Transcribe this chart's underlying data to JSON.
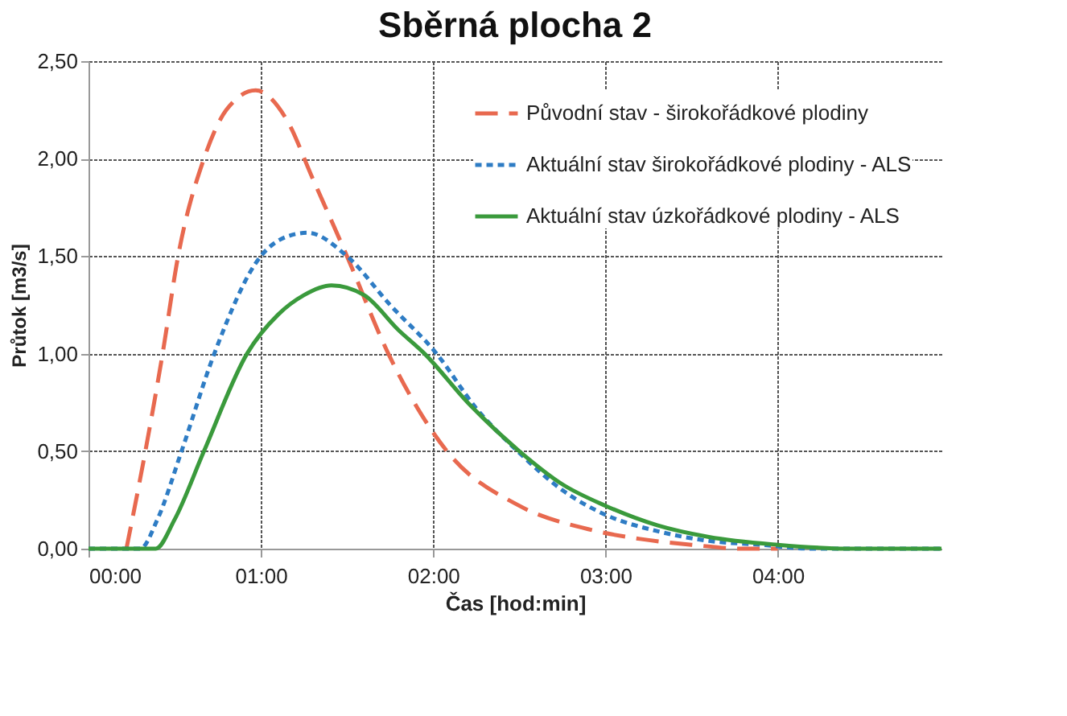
{
  "chart_data": {
    "type": "line",
    "title": "Sběrná plocha 2",
    "xlabel": "Čas [hod:min]",
    "ylabel": "Průtok [m3/s]",
    "xlim": [
      0,
      4.95
    ],
    "xticks": [
      {
        "value": 0,
        "label": "00:00"
      },
      {
        "value": 1,
        "label": "01:00"
      },
      {
        "value": 2,
        "label": "02:00"
      },
      {
        "value": 3,
        "label": "03:00"
      },
      {
        "value": 4,
        "label": "04:00"
      }
    ],
    "ylim": [
      0,
      2.5
    ],
    "yticks": [
      {
        "value": 0,
        "label": "0,00"
      },
      {
        "value": 0.5,
        "label": "0,50"
      },
      {
        "value": 1,
        "label": "1,00"
      },
      {
        "value": 1.5,
        "label": "1,50"
      },
      {
        "value": 2,
        "label": "2,00"
      },
      {
        "value": 2.5,
        "label": "2,50"
      }
    ],
    "grid": true,
    "legend": "top right",
    "marker": "none",
    "series": [
      {
        "name": "Původní stav - širokořádkové plodiny",
        "color": "#e8694f",
        "line_style": "dashed",
        "x": [
          0.22,
          0.33,
          0.43,
          0.52,
          0.67,
          0.8,
          0.97,
          1.15,
          1.3,
          1.5,
          1.74,
          2.08,
          2.5,
          2.9,
          3.2,
          3.5,
          3.8,
          4.0
        ],
        "values": [
          0,
          0.5,
          1.0,
          1.5,
          2.0,
          2.25,
          2.35,
          2.2,
          1.9,
          1.5,
          1.0,
          0.5,
          0.22,
          0.1,
          0.05,
          0.02,
          0,
          0
        ]
      },
      {
        "name": "Aktuální stav širokořádkové plodiny - ALS",
        "color": "#2e7cc4",
        "line_style": "dotted",
        "x": [
          0,
          0.3,
          0.4,
          0.54,
          0.73,
          1.0,
          1.15,
          1.27,
          1.5,
          1.75,
          2.02,
          2.25,
          2.49,
          2.75,
          3.01,
          3.3,
          3.6,
          3.9,
          4.2,
          4.95
        ],
        "values": [
          0,
          0,
          0.15,
          0.5,
          1.0,
          1.5,
          1.6,
          1.62,
          1.5,
          1.25,
          1.0,
          0.72,
          0.5,
          0.3,
          0.17,
          0.09,
          0.04,
          0.02,
          0,
          0
        ]
      },
      {
        "name": "Aktuální stav úzkořádkové plodiny - ALS",
        "color": "#3a9a3c",
        "line_style": "solid",
        "x": [
          0,
          0.39,
          0.5,
          0.67,
          0.92,
          1.1,
          1.25,
          1.41,
          1.6,
          1.8,
          1.95,
          2.2,
          2.5,
          2.75,
          3.0,
          3.3,
          3.6,
          4.0,
          4.4,
          4.95
        ],
        "values": [
          0,
          0,
          0.15,
          0.5,
          1.0,
          1.2,
          1.3,
          1.35,
          1.3,
          1.12,
          1.0,
          0.75,
          0.5,
          0.33,
          0.22,
          0.12,
          0.06,
          0.02,
          0,
          0
        ]
      }
    ]
  }
}
